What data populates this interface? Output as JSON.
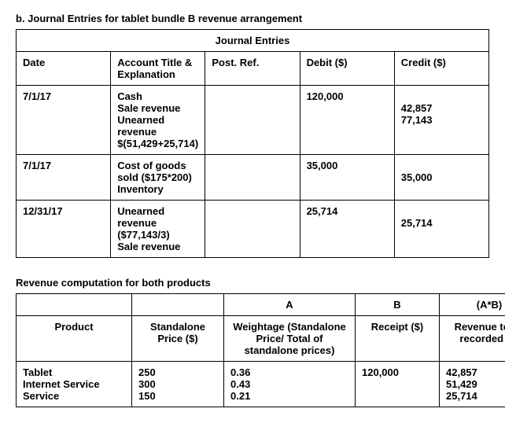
{
  "title": "b. Journal Entries for tablet bundle B revenue arrangement",
  "journal": {
    "caption": "Journal Entries",
    "headers": {
      "date": "Date",
      "account": "Account Title & Explanation",
      "post": "Post. Ref.",
      "debit": "Debit ($)",
      "credit": "Credit ($)"
    },
    "rows": [
      {
        "date": "7/1/17",
        "account_lines": [
          "Cash",
          "Sale revenue",
          "Unearned revenue",
          "$(51,429+25,714)"
        ],
        "post": "",
        "debit_lines": [
          "120,000"
        ],
        "credit_lines": [
          "",
          "42,857",
          "77,143"
        ]
      },
      {
        "date": "7/1/17",
        "account_lines": [
          "Cost of goods sold ($175*200)",
          "Inventory"
        ],
        "post": "",
        "debit_lines": [
          "35,000"
        ],
        "credit_lines": [
          "",
          "35,000"
        ]
      },
      {
        "date": "12/31/17",
        "account_lines": [
          "Unearned revenue ($77,143/3)",
          "Sale revenue"
        ],
        "post": "",
        "debit_lines": [
          "25,714"
        ],
        "credit_lines": [
          "",
          "25,714"
        ]
      }
    ]
  },
  "revenue": {
    "title": "Revenue computation for both products",
    "top_headers": {
      "a": "A",
      "b": "B",
      "ab": "(A*B)"
    },
    "headers": {
      "product": "Product",
      "price": "Standalone Price ($)",
      "weight": "Weightage (Standalone Price/ Total of standalone prices)",
      "receipt": "Receipt ($)",
      "revenue": "Revenue to be recorded ($)"
    },
    "block": {
      "products": [
        "Tablet",
        "Internet Service",
        "Service"
      ],
      "prices": [
        "250",
        "300",
        "150"
      ],
      "weights": [
        "0.36",
        "0.43",
        "0.21"
      ],
      "receipts": [
        "120,000"
      ],
      "revenues": [
        "42,857",
        "51,429",
        "25,714"
      ]
    }
  }
}
